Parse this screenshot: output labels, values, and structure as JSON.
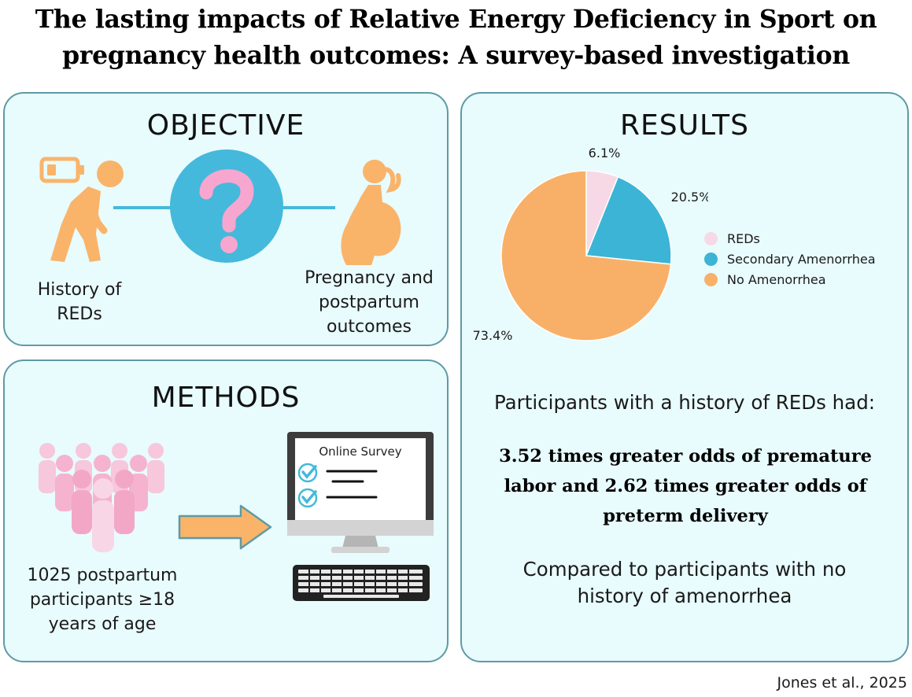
{
  "title_line1": "The lasting impacts of Relative Energy Deficiency in Sport on",
  "title_line2": "pregnancy health outcomes: A survey-based investigation",
  "objective": {
    "heading": "OBJECTIVE",
    "left_caption": [
      "History of",
      "REDs"
    ],
    "right_caption": [
      "Pregnancy and",
      "postpartum",
      "outcomes"
    ],
    "colors": {
      "figure": "#f9b46a",
      "question_circle": "#44b9db",
      "question_mark": "#f7a6cf",
      "connector": "#44b9db"
    },
    "icons": [
      "low-battery-icon",
      "tired-person-icon",
      "question-mark-icon",
      "pregnant-woman-icon"
    ]
  },
  "methods": {
    "heading": "METHODS",
    "participants_caption": [
      "1025 postpartum",
      "participants ≥18",
      "years of age"
    ],
    "survey_label": "Online Survey",
    "colors": {
      "people": "#f5b8d2",
      "arrow": "#f9b46a",
      "check": "#44b9db"
    },
    "icons": [
      "people-crowd-icon",
      "arrow-right-icon",
      "computer-monitor-icon",
      "checkmark-icon",
      "keyboard-icon"
    ]
  },
  "results": {
    "heading": "RESULTS",
    "line1": "Participants with a history of REDs had:",
    "bold_lines": [
      "3.52 times greater odds of premature",
      "labor and 2.62 times greater odds of",
      "preterm delivery"
    ],
    "compare_lines": [
      "Compared to participants with no",
      "history of amenorrhea"
    ]
  },
  "chart_data": {
    "type": "pie",
    "slices": [
      {
        "name": "REDs",
        "value": 6.1,
        "label": "6.1%",
        "color": "#f7d9e5"
      },
      {
        "name": "Secondary Amenorrhea",
        "value": 20.5,
        "label": "20.5%",
        "color": "#3cb4d6"
      },
      {
        "name": "No Amenorrhea",
        "value": 73.4,
        "label": "73.4%",
        "color": "#f8b068"
      }
    ],
    "legend_position": "right"
  },
  "citation": "Jones et al., 2025"
}
